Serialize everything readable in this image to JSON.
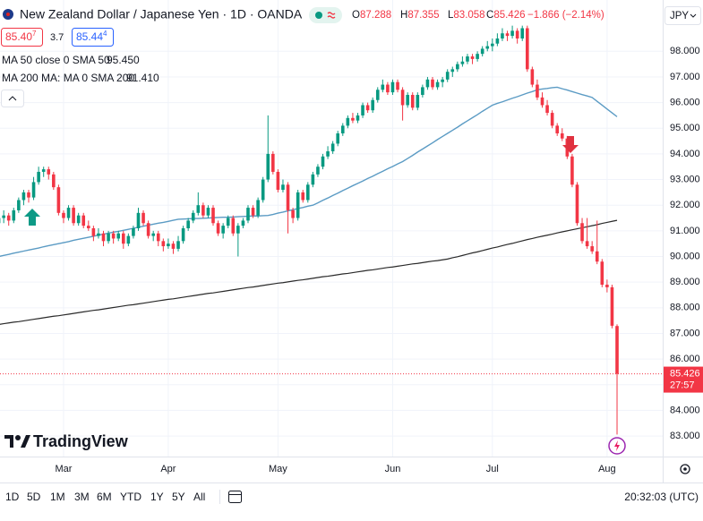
{
  "header": {
    "title": "New Zealand Dollar / Japanese Yen · 1D · OANDA",
    "ohlc": [
      {
        "key": "O",
        "value": "87.288"
      },
      {
        "key": "H",
        "value": "87.355"
      },
      {
        "key": "L",
        "value": "83.058"
      },
      {
        "key": "C",
        "value": "85.426"
      }
    ],
    "change": "−1.866 (−2.14%)",
    "sell": {
      "main": "85.40",
      "sup": "7"
    },
    "spread": "3.7",
    "buy": {
      "main": "85.44",
      "sup": "4"
    },
    "currency": "JPY"
  },
  "logo": "TradingView",
  "toolbar": {
    "ranges": [
      "1D",
      "5D",
      "1M",
      "3M",
      "6M",
      "YTD",
      "1Y",
      "5Y",
      "All"
    ],
    "time": "20:32:03 (UTC)"
  },
  "chart_data": {
    "type": "candlestick",
    "up_color": "#089981",
    "down_color": "#f23645",
    "grid": true,
    "ylim": [
      82.2,
      100.0
    ],
    "yticks": [
      {
        "value": 83,
        "label": "83.000"
      },
      {
        "value": 84,
        "label": "84.000"
      },
      {
        "value": 85,
        "label": "85.000"
      },
      {
        "value": 86,
        "label": "86.000"
      },
      {
        "value": 87,
        "label": "87.000"
      },
      {
        "value": 88,
        "label": "88.000"
      },
      {
        "value": 89,
        "label": "89.000"
      },
      {
        "value": 90,
        "label": "90.000"
      },
      {
        "value": 91,
        "label": "91.000"
      },
      {
        "value": 92,
        "label": "92.000"
      },
      {
        "value": 93,
        "label": "93.000"
      },
      {
        "value": 94,
        "label": "94.000"
      },
      {
        "value": 95,
        "label": "95.000"
      },
      {
        "value": 96,
        "label": "96.000"
      },
      {
        "value": 97,
        "label": "97.000"
      },
      {
        "value": 98,
        "label": "98.000"
      }
    ],
    "last_price": 85.426,
    "countdown": "27:57",
    "categories": [
      null,
      null,
      null,
      null,
      null,
      null,
      null,
      null,
      null,
      null,
      null,
      null,
      null,
      "Mar",
      null,
      null,
      null,
      null,
      null,
      null,
      null,
      null,
      null,
      null,
      null,
      null,
      null,
      null,
      null,
      null,
      null,
      null,
      null,
      null,
      "Apr",
      null,
      null,
      null,
      null,
      null,
      null,
      null,
      null,
      null,
      null,
      null,
      null,
      null,
      null,
      null,
      null,
      null,
      null,
      null,
      null,
      null,
      "May",
      null,
      null,
      null,
      null,
      null,
      null,
      null,
      null,
      null,
      null,
      null,
      null,
      null,
      null,
      null,
      null,
      null,
      null,
      null,
      null,
      null,
      null,
      "Jun",
      null,
      null,
      null,
      null,
      null,
      null,
      null,
      null,
      null,
      null,
      null,
      null,
      null,
      null,
      null,
      null,
      null,
      null,
      null,
      "Jul",
      null,
      null,
      null,
      null,
      null,
      null,
      null,
      null,
      null,
      null,
      null,
      null,
      null,
      null,
      null,
      null,
      null,
      null,
      null,
      null,
      null,
      null,
      "Aug",
      null,
      null
    ],
    "ohlc": [
      [
        91.3,
        91.7,
        91.2,
        91.5
      ],
      [
        91.5,
        91.8,
        91.3,
        91.6
      ],
      [
        91.6,
        91.7,
        91.2,
        91.4
      ],
      [
        91.4,
        91.9,
        91.3,
        91.8
      ],
      [
        91.8,
        92.3,
        91.7,
        92.2
      ],
      [
        92.2,
        92.6,
        92.0,
        92.5
      ],
      [
        92.5,
        92.6,
        92.1,
        92.3
      ],
      [
        92.3,
        93.1,
        92.2,
        92.9
      ],
      [
        92.9,
        93.5,
        92.8,
        93.3
      ],
      [
        93.3,
        93.5,
        93.1,
        93.4
      ],
      [
        93.4,
        93.5,
        93.0,
        93.2
      ],
      [
        93.2,
        93.3,
        92.6,
        92.7
      ],
      [
        92.7,
        92.8,
        91.6,
        91.7
      ],
      [
        91.7,
        91.8,
        91.3,
        91.5
      ],
      [
        91.5,
        92.0,
        91.4,
        91.9
      ],
      [
        91.9,
        92.0,
        91.2,
        91.3
      ],
      [
        91.3,
        91.7,
        91.2,
        91.6
      ],
      [
        91.6,
        91.7,
        91.1,
        91.2
      ],
      [
        91.2,
        91.4,
        91.0,
        91.1
      ],
      [
        91.1,
        91.2,
        90.6,
        90.8
      ],
      [
        90.8,
        91.1,
        90.7,
        90.9
      ],
      [
        90.9,
        91.0,
        90.4,
        90.6
      ],
      [
        90.6,
        91.0,
        90.5,
        90.9
      ],
      [
        90.9,
        91.0,
        90.5,
        90.7
      ],
      [
        90.7,
        91.0,
        90.6,
        90.9
      ],
      [
        90.9,
        91.0,
        90.3,
        90.5
      ],
      [
        90.5,
        90.9,
        90.4,
        90.8
      ],
      [
        90.8,
        91.2,
        90.7,
        91.1
      ],
      [
        91.1,
        91.9,
        91.0,
        91.7
      ],
      [
        91.7,
        91.8,
        91.2,
        91.3
      ],
      [
        91.3,
        91.4,
        90.7,
        90.8
      ],
      [
        90.8,
        91.0,
        90.6,
        90.9
      ],
      [
        90.9,
        91.0,
        90.4,
        90.6
      ],
      [
        90.6,
        90.7,
        90.2,
        90.4
      ],
      [
        90.4,
        90.7,
        90.3,
        90.5
      ],
      [
        90.5,
        90.6,
        90.1,
        90.3
      ],
      [
        90.3,
        90.8,
        90.2,
        90.6
      ],
      [
        90.6,
        91.2,
        90.5,
        91.1
      ],
      [
        91.1,
        91.5,
        91.0,
        91.4
      ],
      [
        91.4,
        91.8,
        91.3,
        91.7
      ],
      [
        91.7,
        92.5,
        91.6,
        92.0
      ],
      [
        92.0,
        92.1,
        91.5,
        91.6
      ],
      [
        91.6,
        92.0,
        91.5,
        91.9
      ],
      [
        91.9,
        92.0,
        91.2,
        91.3
      ],
      [
        91.3,
        91.4,
        90.8,
        90.9
      ],
      [
        90.9,
        91.3,
        90.7,
        91.2
      ],
      [
        91.2,
        91.6,
        91.1,
        91.5
      ],
      [
        91.5,
        91.6,
        90.8,
        90.9
      ],
      [
        90.9,
        91.3,
        90.0,
        91.2
      ],
      [
        91.2,
        91.5,
        91.1,
        91.4
      ],
      [
        91.4,
        92.0,
        91.3,
        91.9
      ],
      [
        91.9,
        92.0,
        91.5,
        91.6
      ],
      [
        91.6,
        92.3,
        91.5,
        92.2
      ],
      [
        92.2,
        93.1,
        92.1,
        93.0
      ],
      [
        93.0,
        95.5,
        92.9,
        94.0
      ],
      [
        94.0,
        94.1,
        93.2,
        93.3
      ],
      [
        93.3,
        93.4,
        92.5,
        92.6
      ],
      [
        92.6,
        93.0,
        92.5,
        92.8
      ],
      [
        92.8,
        92.9,
        90.9,
        91.8
      ],
      [
        91.8,
        91.9,
        91.3,
        91.5
      ],
      [
        91.5,
        92.6,
        91.4,
        92.5
      ],
      [
        92.5,
        92.6,
        92.1,
        92.2
      ],
      [
        92.2,
        92.9,
        92.1,
        92.8
      ],
      [
        92.8,
        93.3,
        92.7,
        93.2
      ],
      [
        93.2,
        93.6,
        93.1,
        93.5
      ],
      [
        93.5,
        94.0,
        93.4,
        93.9
      ],
      [
        93.9,
        94.3,
        93.8,
        94.1
      ],
      [
        94.1,
        94.5,
        94.0,
        94.4
      ],
      [
        94.4,
        94.9,
        94.3,
        94.8
      ],
      [
        94.8,
        95.2,
        94.7,
        95.1
      ],
      [
        95.1,
        95.5,
        95.0,
        95.4
      ],
      [
        95.4,
        95.6,
        95.2,
        95.3
      ],
      [
        95.3,
        95.6,
        95.2,
        95.5
      ],
      [
        95.5,
        96.0,
        95.4,
        95.9
      ],
      [
        95.9,
        96.0,
        95.6,
        95.7
      ],
      [
        95.7,
        96.2,
        95.6,
        96.1
      ],
      [
        96.1,
        96.6,
        96.0,
        96.5
      ],
      [
        96.5,
        96.9,
        96.4,
        96.7
      ],
      [
        96.7,
        96.8,
        96.3,
        96.4
      ],
      [
        96.4,
        96.9,
        96.3,
        96.8
      ],
      [
        96.8,
        96.9,
        96.4,
        96.5
      ],
      [
        96.5,
        96.6,
        95.3,
        95.9
      ],
      [
        95.9,
        96.4,
        95.8,
        96.3
      ],
      [
        96.3,
        96.4,
        95.7,
        95.8
      ],
      [
        95.8,
        96.4,
        95.7,
        96.3
      ],
      [
        96.3,
        96.7,
        96.2,
        96.6
      ],
      [
        96.6,
        97.0,
        96.5,
        96.9
      ],
      [
        96.9,
        97.0,
        96.5,
        96.6
      ],
      [
        96.6,
        96.9,
        96.5,
        96.8
      ],
      [
        96.8,
        97.0,
        96.6,
        96.9
      ],
      [
        96.9,
        97.3,
        96.8,
        97.2
      ],
      [
        97.2,
        97.4,
        97.0,
        97.3
      ],
      [
        97.3,
        97.6,
        97.2,
        97.5
      ],
      [
        97.5,
        97.8,
        97.4,
        97.6
      ],
      [
        97.6,
        97.9,
        97.5,
        97.8
      ],
      [
        97.8,
        97.9,
        97.5,
        97.7
      ],
      [
        97.7,
        98.0,
        97.6,
        97.9
      ],
      [
        97.9,
        98.2,
        97.8,
        98.1
      ],
      [
        98.1,
        98.4,
        98.0,
        98.2
      ],
      [
        98.2,
        98.5,
        98.0,
        98.3
      ],
      [
        98.3,
        98.7,
        98.2,
        98.5
      ],
      [
        98.5,
        98.9,
        98.4,
        98.7
      ],
      [
        98.7,
        98.8,
        98.4,
        98.6
      ],
      [
        98.6,
        99.0,
        98.5,
        98.8
      ],
      [
        98.8,
        98.9,
        98.3,
        98.5
      ],
      [
        98.5,
        99.0,
        98.4,
        98.9
      ],
      [
        98.9,
        99.0,
        97.2,
        97.3
      ],
      [
        97.3,
        97.4,
        96.6,
        96.7
      ],
      [
        96.7,
        96.9,
        96.1,
        96.2
      ],
      [
        96.2,
        96.4,
        95.8,
        95.9
      ],
      [
        95.9,
        96.1,
        95.5,
        95.6
      ],
      [
        95.6,
        95.7,
        95.0,
        95.1
      ],
      [
        95.1,
        95.2,
        94.7,
        94.8
      ],
      [
        94.8,
        95.0,
        94.5,
        94.6
      ],
      [
        94.6,
        94.7,
        93.8,
        93.9
      ],
      [
        93.9,
        94.0,
        92.7,
        92.8
      ],
      [
        92.8,
        92.9,
        91.2,
        91.3
      ],
      [
        91.3,
        91.5,
        90.5,
        90.6
      ],
      [
        90.6,
        91.5,
        90.3,
        90.4
      ],
      [
        90.4,
        90.6,
        90.1,
        90.2
      ],
      [
        90.2,
        91.4,
        89.7,
        89.8
      ],
      [
        89.8,
        89.9,
        88.8,
        88.9
      ],
      [
        88.9,
        89.1,
        88.6,
        88.8
      ],
      [
        88.8,
        88.9,
        87.2,
        87.3
      ],
      [
        87.288,
        87.355,
        83.058,
        85.426
      ]
    ],
    "series": [
      {
        "name": "MA 50 close 0 SMA 50",
        "value_label": "95.450",
        "color": "#5b9bc4",
        "values": [
          90.0,
          90.04,
          90.08,
          90.13,
          90.17,
          90.21,
          90.25,
          90.29,
          90.33,
          90.38,
          90.42,
          90.46,
          90.5,
          90.54,
          90.58,
          90.63,
          90.67,
          90.71,
          90.75,
          90.79,
          90.83,
          90.87,
          90.91,
          90.95,
          90.98,
          91.02,
          91.06,
          91.1,
          91.14,
          91.18,
          91.22,
          91.26,
          91.3,
          91.33,
          91.37,
          91.41,
          91.45,
          91.46,
          91.47,
          91.48,
          91.48,
          91.49,
          91.5,
          91.51,
          91.52,
          91.53,
          91.53,
          91.54,
          91.55,
          91.56,
          91.57,
          91.58,
          91.58,
          91.59,
          91.6,
          91.64,
          91.69,
          91.73,
          91.78,
          91.82,
          91.87,
          91.91,
          91.96,
          92.0,
          92.09,
          92.19,
          92.28,
          92.38,
          92.47,
          92.57,
          92.66,
          92.76,
          92.85,
          92.94,
          93.04,
          93.13,
          93.23,
          93.32,
          93.42,
          93.51,
          93.61,
          93.7,
          93.82,
          93.94,
          94.07,
          94.19,
          94.31,
          94.43,
          94.56,
          94.68,
          94.8,
          94.92,
          95.04,
          95.17,
          95.29,
          95.41,
          95.53,
          95.66,
          95.78,
          95.9,
          95.97,
          96.03,
          96.1,
          96.17,
          96.23,
          96.3,
          96.37,
          96.43,
          96.5,
          96.53,
          96.55,
          96.58,
          96.6,
          96.54,
          96.49,
          96.43,
          96.37,
          96.31,
          96.26,
          96.2,
          96.05,
          95.9,
          95.75,
          95.6,
          95.45
        ]
      },
      {
        "name": "MA 200 MA: MA 0 SMA 200",
        "value_label": "91.410",
        "color": "#2a2a2a",
        "values": [
          87.35,
          87.38,
          87.41,
          87.44,
          87.46,
          87.49,
          87.52,
          87.55,
          87.58,
          87.61,
          87.64,
          87.67,
          87.69,
          87.72,
          87.75,
          87.78,
          87.81,
          87.84,
          87.87,
          87.9,
          87.92,
          87.95,
          87.98,
          88.01,
          88.04,
          88.07,
          88.1,
          88.12,
          88.15,
          88.18,
          88.21,
          88.24,
          88.27,
          88.3,
          88.33,
          88.35,
          88.38,
          88.41,
          88.44,
          88.47,
          88.5,
          88.53,
          88.56,
          88.58,
          88.61,
          88.64,
          88.67,
          88.7,
          88.73,
          88.76,
          88.79,
          88.81,
          88.84,
          88.87,
          88.9,
          88.93,
          88.96,
          88.98,
          89.01,
          89.04,
          89.07,
          89.09,
          89.12,
          89.15,
          89.18,
          89.21,
          89.23,
          89.26,
          89.29,
          89.32,
          89.34,
          89.37,
          89.4,
          89.43,
          89.46,
          89.48,
          89.51,
          89.54,
          89.57,
          89.59,
          89.62,
          89.65,
          89.68,
          89.71,
          89.73,
          89.76,
          89.79,
          89.82,
          89.84,
          89.87,
          89.9,
          89.95,
          89.99,
          90.04,
          90.09,
          90.14,
          90.18,
          90.23,
          90.28,
          90.33,
          90.37,
          90.42,
          90.47,
          90.51,
          90.56,
          90.61,
          90.66,
          90.7,
          90.75,
          90.79,
          90.83,
          90.87,
          90.92,
          90.96,
          91.0,
          91.04,
          91.08,
          91.12,
          91.16,
          91.2,
          91.24,
          91.29,
          91.33,
          91.37,
          91.41
        ]
      }
    ]
  }
}
